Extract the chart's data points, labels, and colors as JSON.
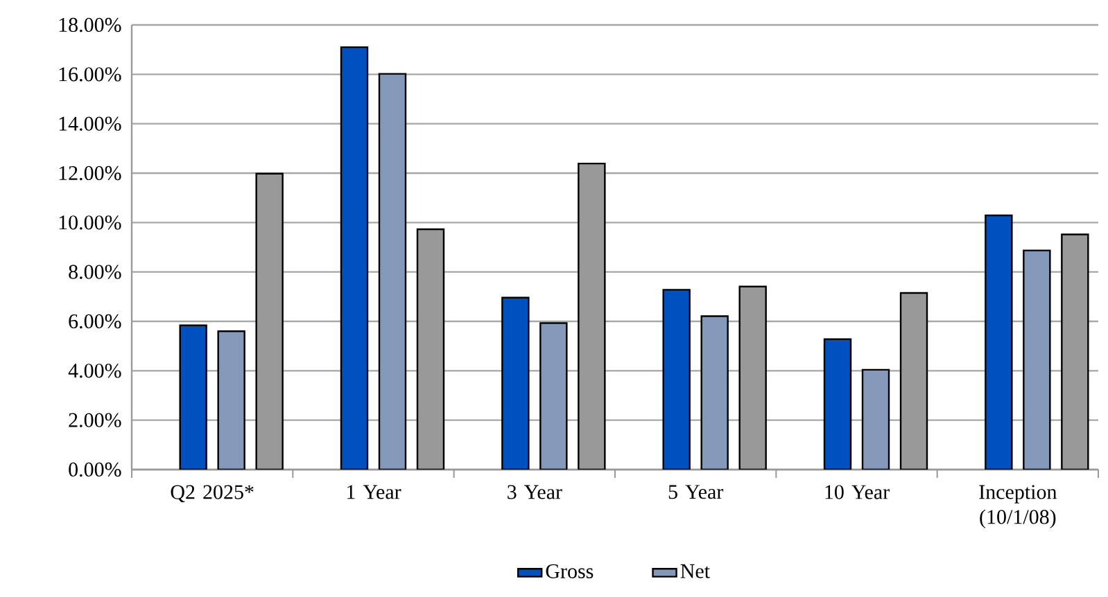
{
  "chart_data": {
    "type": "bar",
    "categories": [
      "Q2 2025*",
      "1 Year",
      "3 Year",
      "5 Year",
      "10 Year",
      "Inception (10/1/08)"
    ],
    "series": [
      {
        "name": "Gross",
        "color": "#0050c0",
        "values": [
          5.84,
          17.1,
          6.96,
          7.28,
          5.28,
          10.29
        ]
      },
      {
        "name": "Net",
        "color": "#8499b9",
        "values": [
          5.6,
          16.02,
          5.93,
          6.21,
          4.04,
          8.87
        ]
      },
      {
        "color": "#999999",
        "values": [
          11.98,
          9.73,
          12.39,
          7.41,
          7.15,
          9.52
        ]
      }
    ],
    "ylim": [
      0,
      18
    ],
    "yticks": [
      {
        "value": 0,
        "label": "0.00%"
      },
      {
        "value": 2,
        "label": "2.00%"
      },
      {
        "value": 4,
        "label": "4.00%"
      },
      {
        "value": 6,
        "label": "6.00%"
      },
      {
        "value": 8,
        "label": "8.00%"
      },
      {
        "value": 10,
        "label": "10.00%"
      },
      {
        "value": 12,
        "label": "12.00%"
      },
      {
        "value": 14,
        "label": "14.00%"
      },
      {
        "value": 16,
        "label": "16.00%"
      },
      {
        "value": 18,
        "label": "18.00%"
      }
    ],
    "grid": "y",
    "legend": "bottom"
  }
}
